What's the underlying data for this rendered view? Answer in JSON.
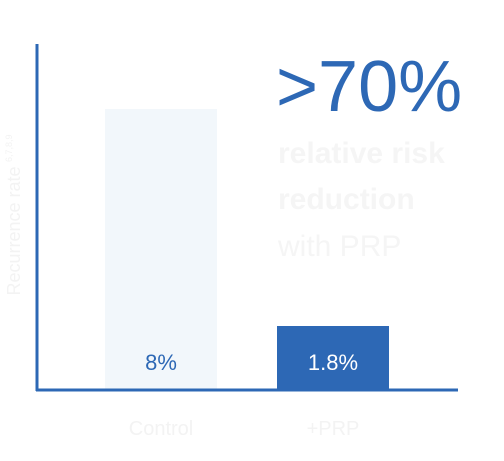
{
  "chart_data": {
    "type": "bar",
    "categories": [
      "Control",
      "+PRP"
    ],
    "values": [
      8,
      1.8
    ],
    "data_labels": [
      "8%",
      "1.8%"
    ],
    "ylabel": "Recurrence rate",
    "ylabel_superscript": "6,7,8,9",
    "ylim": [
      0,
      10
    ],
    "grid": false,
    "colors": {
      "control_bar": "#f2f7fb",
      "prp_bar": "#2d68b5",
      "axis": "#2d68b5",
      "control_label": "#2d68b5",
      "prp_label": "#ffffff"
    }
  },
  "callout": {
    "headline": ">70%",
    "line1": "relative risk",
    "line2": "reduction",
    "line3": "with PRP",
    "color": "#2d68b5"
  }
}
